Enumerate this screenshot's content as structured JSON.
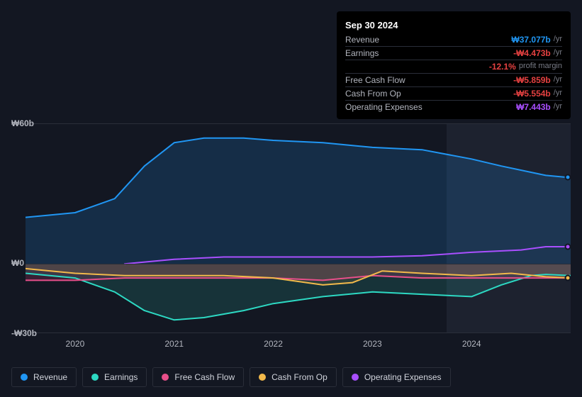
{
  "tooltip": {
    "date": "Sep 30 2024",
    "rows": [
      {
        "label": "Revenue",
        "value": "₩37.077b",
        "unit": "/yr",
        "color": "#2096f3"
      },
      {
        "label": "Earnings",
        "value": "-₩4.473b",
        "unit": "/yr",
        "color": "#e64141"
      },
      {
        "label": "",
        "value": "-12.1%",
        "unit": "profit margin",
        "color": "#e64141"
      },
      {
        "label": "Free Cash Flow",
        "value": "-₩5.859b",
        "unit": "/yr",
        "color": "#e64141"
      },
      {
        "label": "Cash From Op",
        "value": "-₩5.554b",
        "unit": "/yr",
        "color": "#e64141"
      },
      {
        "label": "Operating Expenses",
        "value": "₩7.443b",
        "unit": "/yr",
        "color": "#a94fff"
      }
    ]
  },
  "legend": [
    {
      "label": "Revenue",
      "color": "#2096f3"
    },
    {
      "label": "Earnings",
      "color": "#2dd9c3"
    },
    {
      "label": "Free Cash Flow",
      "color": "#e84f8a"
    },
    {
      "label": "Cash From Op",
      "color": "#f2b94b"
    },
    {
      "label": "Operating Expenses",
      "color": "#a94fff"
    }
  ],
  "chart": {
    "background_color": "#131722",
    "grid_color": "#2a2e39",
    "y_min": -30,
    "y_max": 60,
    "y_ticks": [
      {
        "value": 60,
        "label": "₩60b"
      },
      {
        "value": 0,
        "label": "₩0"
      },
      {
        "value": -30,
        "label": "-₩30b"
      }
    ],
    "x_min": 2019.5,
    "x_max": 2025.0,
    "x_ticks": [
      {
        "value": 2020,
        "label": "2020"
      },
      {
        "value": 2021,
        "label": "2021"
      },
      {
        "value": 2022,
        "label": "2022"
      },
      {
        "value": 2023,
        "label": "2023"
      },
      {
        "value": 2024,
        "label": "2024"
      }
    ],
    "highlight_from": 2023.75,
    "highlight_to": 2025.0,
    "series": {
      "revenue": {
        "color": "#2096f3",
        "fill_opacity": 0.18,
        "points": [
          [
            2019.5,
            20
          ],
          [
            2020.0,
            22
          ],
          [
            2020.4,
            28
          ],
          [
            2020.7,
            42
          ],
          [
            2021.0,
            52
          ],
          [
            2021.3,
            54
          ],
          [
            2021.7,
            54
          ],
          [
            2022.0,
            53
          ],
          [
            2022.5,
            52
          ],
          [
            2023.0,
            50
          ],
          [
            2023.5,
            49
          ],
          [
            2024.0,
            45
          ],
          [
            2024.3,
            42
          ],
          [
            2024.75,
            38
          ],
          [
            2025.0,
            37
          ]
        ]
      },
      "earnings": {
        "color": "#2dd9c3",
        "fill_opacity": 0.15,
        "points": [
          [
            2019.5,
            -4
          ],
          [
            2020.0,
            -6
          ],
          [
            2020.4,
            -12
          ],
          [
            2020.7,
            -20
          ],
          [
            2021.0,
            -24
          ],
          [
            2021.3,
            -23
          ],
          [
            2021.7,
            -20
          ],
          [
            2022.0,
            -17
          ],
          [
            2022.5,
            -14
          ],
          [
            2023.0,
            -12
          ],
          [
            2023.5,
            -13
          ],
          [
            2024.0,
            -14
          ],
          [
            2024.3,
            -9
          ],
          [
            2024.6,
            -5
          ],
          [
            2024.75,
            -4.5
          ],
          [
            2025.0,
            -5
          ]
        ]
      },
      "free_cash_flow": {
        "color": "#e84f8a",
        "fill_opacity": 0.18,
        "points": [
          [
            2019.5,
            -7
          ],
          [
            2020.0,
            -7
          ],
          [
            2020.5,
            -6
          ],
          [
            2021.0,
            -6
          ],
          [
            2021.5,
            -6
          ],
          [
            2022.0,
            -6
          ],
          [
            2022.5,
            -7
          ],
          [
            2023.0,
            -5
          ],
          [
            2023.5,
            -6
          ],
          [
            2024.0,
            -6
          ],
          [
            2024.5,
            -6
          ],
          [
            2025.0,
            -6
          ]
        ]
      },
      "cash_from_op": {
        "color": "#f2b94b",
        "fill_opacity": 0.1,
        "points": [
          [
            2019.5,
            -2
          ],
          [
            2020.0,
            -4
          ],
          [
            2020.5,
            -5
          ],
          [
            2021.0,
            -5
          ],
          [
            2021.5,
            -5
          ],
          [
            2022.0,
            -6
          ],
          [
            2022.5,
            -9
          ],
          [
            2022.8,
            -8
          ],
          [
            2023.1,
            -3
          ],
          [
            2023.5,
            -4
          ],
          [
            2024.0,
            -5
          ],
          [
            2024.4,
            -4
          ],
          [
            2024.75,
            -5.5
          ],
          [
            2025.0,
            -6
          ]
        ]
      },
      "operating_expenses": {
        "color": "#a94fff",
        "fill_opacity": 0.0,
        "start_x": 2020.5,
        "points": [
          [
            2020.5,
            0
          ],
          [
            2021.0,
            2
          ],
          [
            2021.5,
            3
          ],
          [
            2022.0,
            3
          ],
          [
            2022.5,
            3
          ],
          [
            2023.0,
            3
          ],
          [
            2023.5,
            3.5
          ],
          [
            2024.0,
            5
          ],
          [
            2024.5,
            6
          ],
          [
            2024.75,
            7.4
          ],
          [
            2025.0,
            7.4
          ]
        ]
      }
    },
    "markers": [
      {
        "series": "revenue",
        "x": 2024.97,
        "color": "#2096f3"
      },
      {
        "series": "operating_expenses",
        "x": 2024.97,
        "color": "#a94fff"
      },
      {
        "series": "cash_from_op",
        "x": 2024.97,
        "color": "#f2b94b"
      }
    ],
    "line_width": 2,
    "label_fontsize": 12
  }
}
